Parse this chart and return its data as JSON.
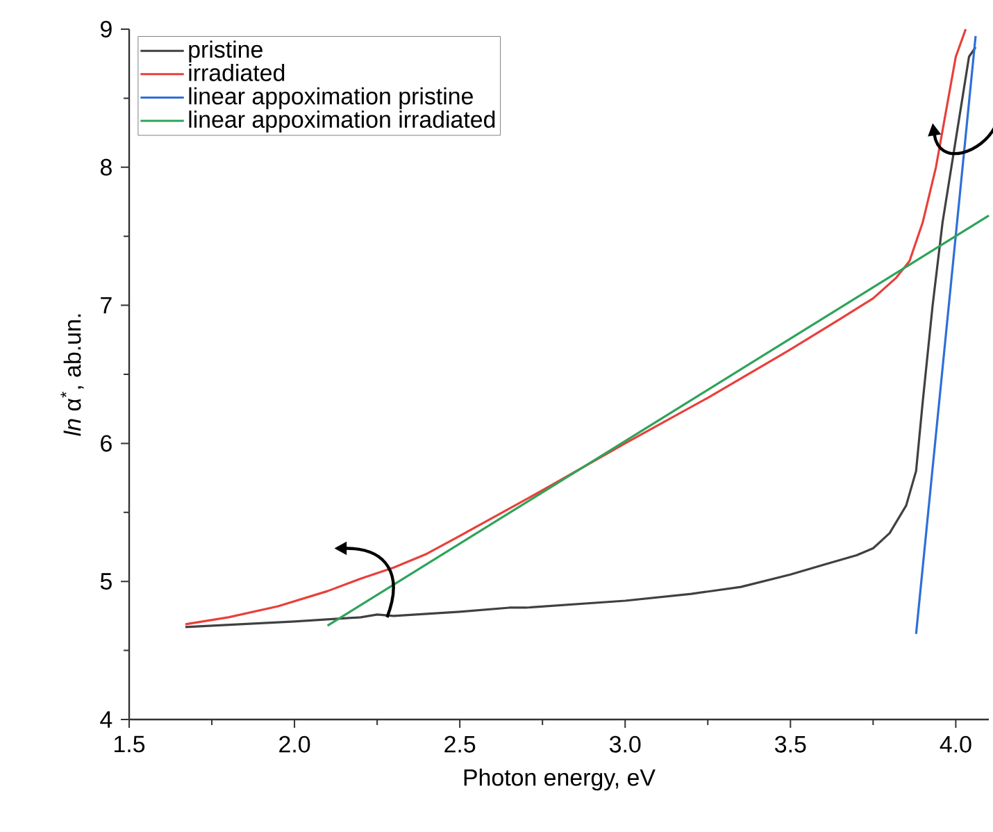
{
  "chart_data": {
    "type": "line",
    "xlabel": "Photon energy, eV",
    "ylabel": "*ln* α$^{*}$, ab.un.",
    "xlim": [
      1.5,
      4.1
    ],
    "ylim": [
      4,
      9
    ],
    "xticks": [
      1.5,
      {
        "value": 2,
        "label": "2.0"
      },
      2.5,
      {
        "value": 3,
        "label": "3.0"
      },
      3.5,
      {
        "value": 4,
        "label": "4.0"
      }
    ],
    "yticks": [
      4,
      5,
      6,
      7,
      8,
      9
    ],
    "legend": "top left",
    "grid": false,
    "marker": "none",
    "line_style": "solid",
    "series": [
      {
        "name": "pristine",
        "color": "#404040",
        "x": [
          1.67,
          2.0,
          2.2,
          2.25,
          2.3,
          2.5,
          2.65,
          2.7,
          3.0,
          3.2,
          3.35,
          3.5,
          3.6,
          3.7,
          3.75,
          3.8,
          3.85,
          3.88,
          3.9,
          3.93,
          3.96,
          4.0,
          4.04,
          4.06
        ],
        "values": [
          4.67,
          4.71,
          4.74,
          4.76,
          4.75,
          4.78,
          4.81,
          4.81,
          4.86,
          4.91,
          4.96,
          5.05,
          5.12,
          5.19,
          5.24,
          5.35,
          5.55,
          5.8,
          6.3,
          7.0,
          7.6,
          8.2,
          8.8,
          8.87
        ]
      },
      {
        "name": "irradiated",
        "color": "#e8403a",
        "x": [
          1.67,
          1.8,
          1.95,
          2.1,
          2.2,
          2.3,
          2.4,
          2.5,
          2.75,
          3.0,
          3.25,
          3.5,
          3.65,
          3.75,
          3.82,
          3.86,
          3.9,
          3.94,
          3.97,
          4.0,
          4.03
        ],
        "values": [
          4.69,
          4.74,
          4.82,
          4.93,
          5.02,
          5.1,
          5.2,
          5.33,
          5.66,
          6.0,
          6.33,
          6.68,
          6.9,
          7.05,
          7.2,
          7.32,
          7.6,
          8.0,
          8.4,
          8.8,
          9.0
        ]
      },
      {
        "name": "linear appoximation pristine",
        "color": "#2f6fd8",
        "x": [
          3.88,
          4.06
        ],
        "values": [
          4.62,
          8.95
        ]
      },
      {
        "name": "linear appoximation irradiated",
        "color": "#2ea35a",
        "x": [
          2.1,
          4.1
        ],
        "values": [
          4.68,
          7.65
        ]
      }
    ]
  }
}
